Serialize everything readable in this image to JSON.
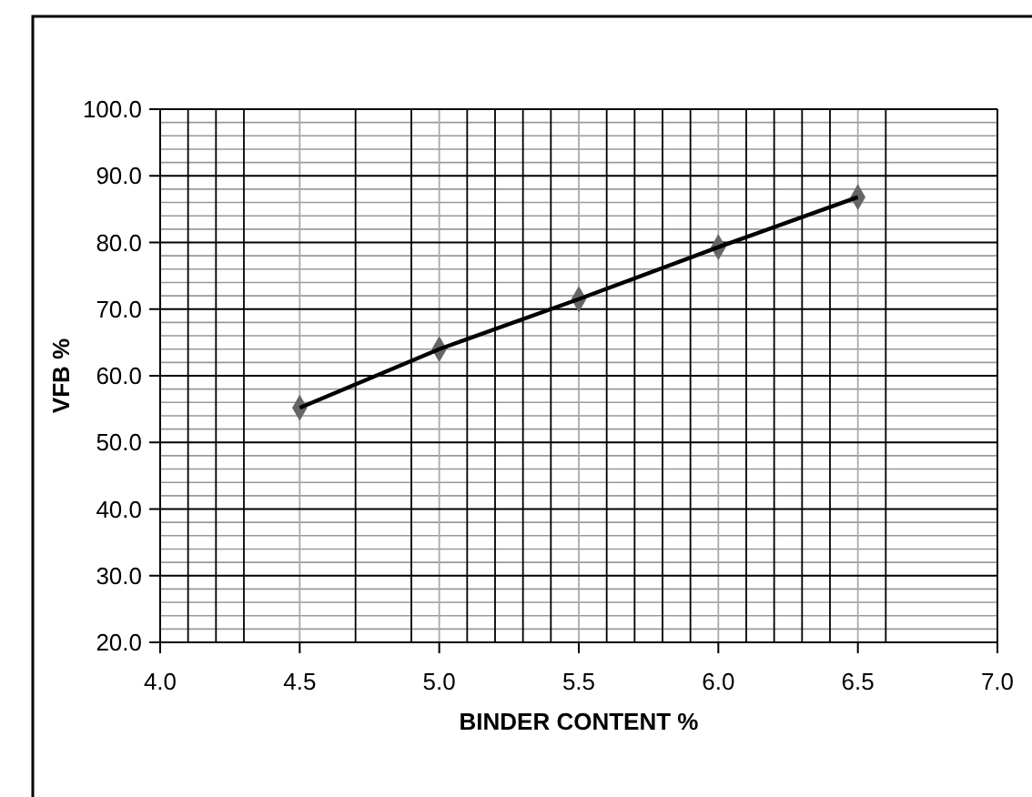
{
  "chart_data": {
    "type": "line",
    "xlabel": "BINDER CONTENT %",
    "ylabel": "VFB %",
    "x": [
      4.5,
      5.0,
      5.5,
      6.0,
      6.5
    ],
    "series": [
      {
        "color": "#000000",
        "values": [
          55.2,
          64.0,
          71.5,
          79.3,
          86.8
        ]
      }
    ],
    "marker": "diamond",
    "line_style": "solid",
    "grid": true,
    "xlim": [
      4.0,
      7.0
    ],
    "xticks": [
      {
        "value": 4.0,
        "label": "4.0"
      },
      {
        "value": 4.1,
        "label": null
      },
      {
        "value": 4.2,
        "label": null
      },
      {
        "value": 4.3,
        "label": null
      },
      {
        "value": 4.5,
        "label": "4.5"
      },
      {
        "value": 4.7,
        "label": null
      },
      {
        "value": 4.9,
        "label": null
      },
      {
        "value": 5.0,
        "label": "5.0"
      },
      {
        "value": 5.1,
        "label": null
      },
      {
        "value": 5.2,
        "label": null
      },
      {
        "value": 5.3,
        "label": null
      },
      {
        "value": 5.4,
        "label": null
      },
      {
        "value": 5.5,
        "label": "5.5"
      },
      {
        "value": 5.6,
        "label": null
      },
      {
        "value": 5.7,
        "label": null
      },
      {
        "value": 5.8,
        "label": null
      },
      {
        "value": 5.9,
        "label": null
      },
      {
        "value": 6.0,
        "label": "6.0"
      },
      {
        "value": 6.1,
        "label": null
      },
      {
        "value": 6.2,
        "label": null
      },
      {
        "value": 6.3,
        "label": null
      },
      {
        "value": 6.4,
        "label": null
      },
      {
        "value": 6.5,
        "label": "6.5"
      },
      {
        "value": 6.6,
        "label": null
      },
      {
        "value": 7.0,
        "label": "7.0"
      }
    ],
    "ylim": [
      20,
      100
    ],
    "yticks": [
      {
        "value": 20,
        "label": "20.0"
      },
      {
        "value": 30,
        "label": "30.0"
      },
      {
        "value": 40,
        "label": "40.0"
      },
      {
        "value": 50,
        "label": "50.0"
      },
      {
        "value": 60,
        "label": "60.0"
      },
      {
        "value": 70,
        "label": "70.0"
      },
      {
        "value": 80,
        "label": "80.0"
      },
      {
        "value": 90,
        "label": "90.0"
      },
      {
        "value": 100,
        "label": "100.0"
      }
    ]
  }
}
